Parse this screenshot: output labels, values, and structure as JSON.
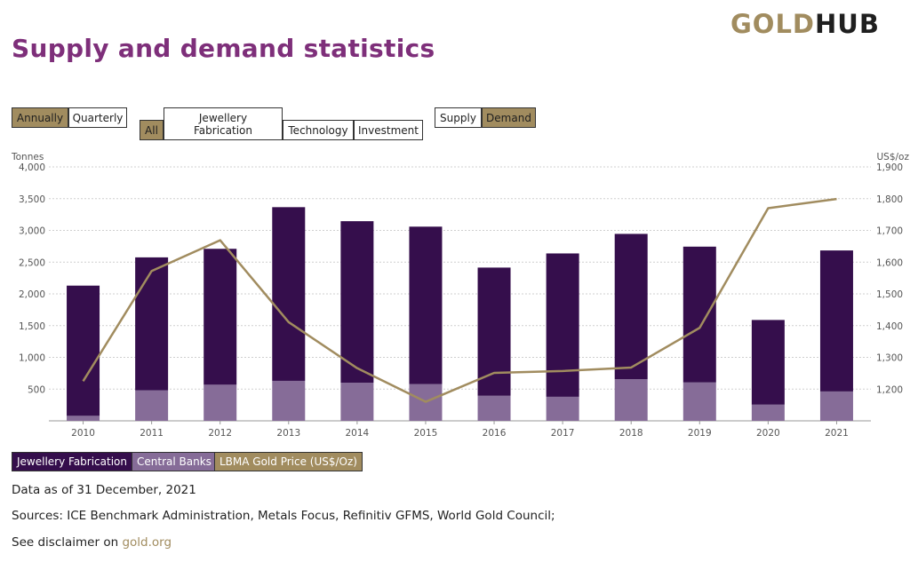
{
  "brand": {
    "gold": "GOLD",
    "hub": "HUB"
  },
  "title": "Supply and demand statistics",
  "period_buttons": [
    {
      "label": "Annually",
      "active": true
    },
    {
      "label": "Quarterly",
      "active": false
    }
  ],
  "category_buttons": [
    {
      "label": "All",
      "active": true
    },
    {
      "label": "Jewellery Fabrication",
      "active": false
    },
    {
      "label": "Technology",
      "active": false
    },
    {
      "label": "Investment",
      "active": false
    }
  ],
  "side_buttons": [
    {
      "label": "Supply",
      "active": false
    },
    {
      "label": "Demand",
      "active": true
    }
  ],
  "chart_data": {
    "type": "bar",
    "stacked": true,
    "categories": [
      "2010",
      "2011",
      "2012",
      "2013",
      "2014",
      "2015",
      "2016",
      "2017",
      "2018",
      "2019",
      "2020",
      "2021"
    ],
    "series": [
      {
        "name": "Central Banks",
        "color": "#866c98",
        "values": [
          79,
          480,
          569,
          630,
          601,
          580,
          395,
          379,
          656,
          605,
          255,
          463
        ]
      },
      {
        "name": "Jewellery Fabrication",
        "color": "#350e4c",
        "values": [
          2051,
          2095,
          2141,
          2736,
          2544,
          2479,
          2019,
          2258,
          2289,
          2139,
          1334,
          2221
        ]
      }
    ],
    "line": {
      "name": "LBMA Gold Price (US$/Oz)",
      "color": "#a18c5f",
      "axis": "right",
      "values": [
        1225,
        1572,
        1669,
        1411,
        1266,
        1160,
        1251,
        1257,
        1268,
        1393,
        1770,
        1799
      ]
    },
    "ylabel": "Tonnes",
    "y2label": "US$/oz",
    "ylim": [
      0,
      4000
    ],
    "y2lim": [
      1100,
      1900
    ],
    "yticks": [
      "4,000",
      "3,500",
      "3,000",
      "2,500",
      "2,000",
      "1,500",
      "1,000",
      "500"
    ],
    "y2ticks": [
      "1,900",
      "1,800",
      "1,700",
      "1,600",
      "1,500",
      "1,400",
      "1,300",
      "1,200"
    ],
    "grid": true
  },
  "legend": [
    {
      "label": "Jewellery Fabrication",
      "color": "#350e4c",
      "text_color": "#ffffff"
    },
    {
      "label": "Central Banks",
      "color": "#866c98",
      "text_color": "#ffffff"
    },
    {
      "label": "LBMA Gold Price (US$/Oz)",
      "color": "#a18c5f",
      "text_color": "#ffffff"
    }
  ],
  "notes": {
    "as_of": "Data as of 31 December, 2021",
    "sources": "Sources: ICE Benchmark Administration, Metals Focus, Refinitiv GFMS, World Gold Council;",
    "disclaimer_prefix": "See disclaimer on ",
    "disclaimer_link": "gold.org"
  }
}
